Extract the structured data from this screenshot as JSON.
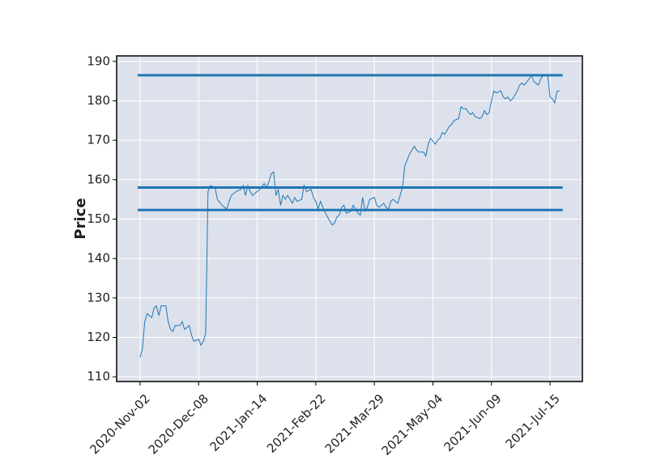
{
  "chart_data": {
    "type": "line",
    "ylabel": "Price",
    "x": [
      0,
      1,
      2,
      3,
      5,
      6,
      7,
      8,
      9,
      11,
      12,
      13,
      14,
      15,
      17,
      18,
      19,
      21,
      22,
      23,
      25,
      26,
      27,
      28,
      29,
      30,
      32,
      33,
      35,
      37,
      38,
      39,
      41,
      43,
      44,
      45,
      46,
      47,
      48,
      50,
      51,
      53,
      54,
      55,
      56,
      57,
      58,
      59,
      60,
      61,
      62,
      63,
      65,
      66,
      67,
      69,
      70,
      71,
      73,
      74,
      75,
      76,
      77,
      78,
      80,
      82,
      83,
      84,
      85,
      86,
      87,
      88,
      90,
      91,
      93,
      94,
      95,
      96,
      97,
      98,
      100,
      101,
      102,
      104,
      105,
      106,
      107,
      108,
      110,
      111,
      112,
      113,
      114,
      115,
      117,
      118,
      119,
      121,
      122,
      123,
      124,
      126,
      127,
      128,
      129,
      130,
      132,
      133,
      134,
      136,
      137,
      138,
      139,
      141,
      142,
      143,
      145,
      146,
      147,
      148,
      149,
      150,
      151,
      152,
      154,
      155,
      156,
      157,
      158,
      159,
      161,
      162,
      163,
      164,
      166,
      167,
      168,
      169,
      170,
      171,
      172,
      174,
      175,
      176,
      177,
      178,
      179
    ],
    "series": [
      {
        "color": "#1f77b4",
        "values": [
          115,
          117,
          124,
          126,
          125,
          127.5,
          128,
          125.5,
          128,
          128,
          124,
          122,
          121.5,
          123,
          123,
          124,
          122,
          123,
          120.5,
          119,
          119.5,
          118,
          119,
          121,
          157,
          158.5,
          158,
          155,
          153.5,
          152.5,
          154.5,
          156,
          157,
          157.5,
          158.5,
          156,
          158.5,
          157,
          156,
          157,
          157.5,
          159,
          158,
          159.5,
          161.5,
          162,
          156,
          157.5,
          153.5,
          156,
          155,
          156,
          154,
          155.5,
          154.5,
          155,
          158.5,
          157,
          157.5,
          155.5,
          154.5,
          152.5,
          154.5,
          153,
          150.5,
          148.5,
          149,
          150.5,
          151,
          153,
          153.5,
          151.5,
          152,
          153.5,
          151.5,
          151,
          155.5,
          152,
          153,
          155,
          155.5,
          153.5,
          153,
          154,
          153,
          152.5,
          154.5,
          155,
          154,
          156,
          158,
          163.5,
          165,
          166.5,
          168.5,
          167.5,
          167,
          167,
          166,
          169,
          170.5,
          169,
          170,
          170.5,
          172,
          171.5,
          173.5,
          174,
          175,
          175.5,
          178.5,
          178,
          178,
          176.5,
          177,
          176,
          175.5,
          176,
          177.5,
          176.5,
          177,
          180,
          182.5,
          182,
          182.5,
          181,
          180.5,
          181,
          180,
          180.5,
          182.5,
          184,
          184.5,
          184,
          185.5,
          186.5,
          185,
          184.5,
          184,
          185.5,
          186.5,
          186.5,
          181,
          180.5,
          179.5,
          182.5,
          182.5
        ]
      }
    ],
    "hlines": [
      186.5,
      158,
      152.3
    ],
    "hline_color": "#1f77b4",
    "xlim": [
      -10,
      188.8
    ],
    "xticks": [
      {
        "value": 0,
        "label": "2020-Nov-02"
      },
      {
        "value": 25,
        "label": "2020-Dec-08"
      },
      {
        "value": 50,
        "label": "2021-Jan-14"
      },
      {
        "value": 75,
        "label": "2021-Feb-22"
      },
      {
        "value": 100,
        "label": "2021-Mar-29"
      },
      {
        "value": 125,
        "label": "2021-May-04"
      },
      {
        "value": 150,
        "label": "2021-Jun-09"
      },
      {
        "value": 175,
        "label": "2021-Jul-15"
      }
    ],
    "ylim": [
      108.8,
      191.4
    ],
    "yticks": [
      110,
      120,
      130,
      140,
      150,
      160,
      170,
      180,
      190
    ],
    "grid": true
  }
}
